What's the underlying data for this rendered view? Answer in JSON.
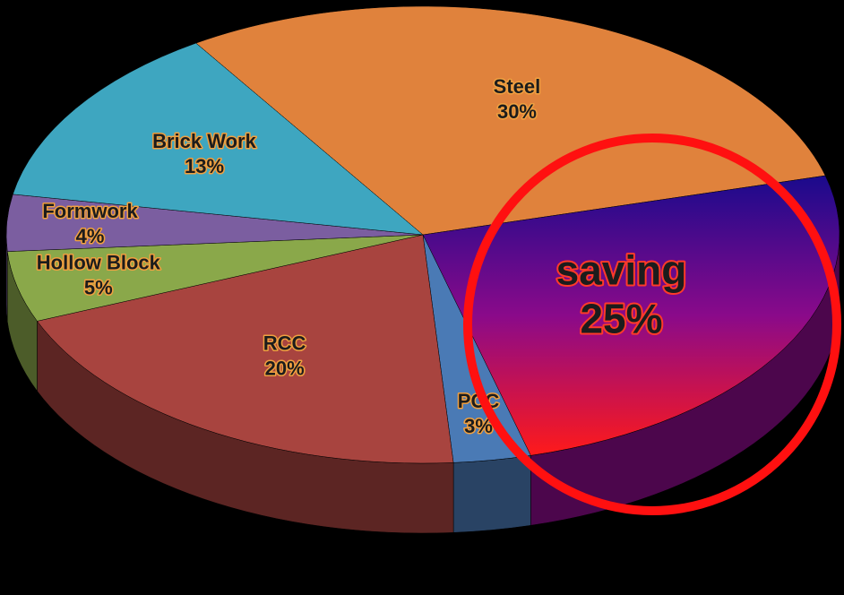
{
  "chart_data": {
    "type": "pie",
    "categories": [
      "Steel",
      "saving",
      "PCC",
      "RCC",
      "Hollow Block",
      "Formwork",
      "Brick Work"
    ],
    "values": [
      30,
      25,
      3,
      20,
      5,
      4,
      13
    ],
    "value_labels": [
      "30%",
      "25%",
      "3%",
      "20%",
      "5%",
      "4%",
      "13%"
    ],
    "colors": [
      "#e0823c",
      "#8a0a8a",
      "#4a7ab5",
      "#a8443f",
      "#8aa84a",
      "#7b5ea0",
      "#3ea6c0"
    ]
  }
}
